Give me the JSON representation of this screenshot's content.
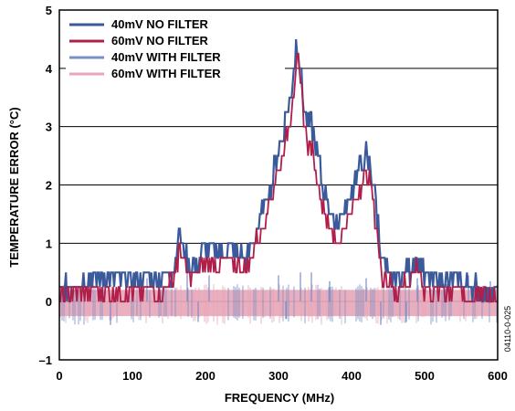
{
  "chart_data": {
    "type": "line",
    "xlabel": "FREQUENCY (MHz)",
    "ylabel": "TEMPERATURE ERROR (°C)",
    "xlim": [
      0,
      600
    ],
    "ylim": [
      -1,
      5
    ],
    "xticks": [
      "0",
      "100",
      "200",
      "300",
      "400",
      "500",
      "600"
    ],
    "yticks": [
      "–1",
      "0",
      "1",
      "2",
      "3",
      "4",
      "5"
    ],
    "grid": "horizontal",
    "legend_position": "top-left",
    "figure_id": "04110-0-025",
    "series": [
      {
        "name": "40mV NO FILTER",
        "color": "#3a5a9c",
        "x": [
          0,
          20,
          40,
          60,
          80,
          100,
          120,
          140,
          155,
          165,
          175,
          185,
          195,
          205,
          215,
          225,
          235,
          245,
          255,
          265,
          275,
          285,
          295,
          305,
          315,
          320,
          325,
          330,
          335,
          340,
          345,
          350,
          355,
          360,
          365,
          370,
          375,
          385,
          395,
          405,
          415,
          420,
          425,
          430,
          435,
          440,
          450,
          460,
          470,
          480,
          490,
          495,
          500,
          510,
          520,
          540,
          560,
          580,
          600
        ],
        "y": [
          0.2,
          0.3,
          0.4,
          0.4,
          0.4,
          0.4,
          0.4,
          0.4,
          0.5,
          1.2,
          0.7,
          0.6,
          0.8,
          0.9,
          0.9,
          0.8,
          0.9,
          0.8,
          0.7,
          1.0,
          1.4,
          1.8,
          2.3,
          2.8,
          3.4,
          3.8,
          4.5,
          4.0,
          3.4,
          3.0,
          3.0,
          2.7,
          2.4,
          2.0,
          1.8,
          1.6,
          1.4,
          1.4,
          1.7,
          2.1,
          2.4,
          2.5,
          2.3,
          2.0,
          1.5,
          0.8,
          0.5,
          0.4,
          0.5,
          0.5,
          0.8,
          0.6,
          0.4,
          0.4,
          0.3,
          0.3,
          0.3,
          0.2,
          0.2
        ]
      },
      {
        "name": "60mV NO FILTER",
        "color": "#b01e4a",
        "x": [
          0,
          20,
          40,
          60,
          80,
          100,
          120,
          140,
          155,
          165,
          175,
          185,
          195,
          205,
          215,
          225,
          235,
          245,
          255,
          265,
          275,
          285,
          295,
          305,
          315,
          320,
          325,
          330,
          335,
          340,
          345,
          350,
          355,
          360,
          365,
          370,
          375,
          385,
          395,
          405,
          415,
          420,
          425,
          430,
          435,
          440,
          450,
          460,
          470,
          480,
          490,
          495,
          500,
          510,
          520,
          540,
          560,
          580,
          600
        ],
        "y": [
          0.1,
          0.2,
          0.2,
          0.2,
          0.2,
          0.2,
          0.2,
          0.2,
          0.3,
          0.9,
          0.5,
          0.4,
          0.6,
          0.7,
          0.6,
          0.6,
          0.7,
          0.6,
          0.5,
          0.8,
          1.2,
          1.6,
          2.0,
          2.5,
          3.0,
          3.6,
          4.2,
          3.7,
          3.1,
          2.7,
          2.6,
          2.3,
          2.0,
          1.7,
          1.5,
          1.3,
          1.1,
          1.1,
          1.4,
          1.8,
          2.1,
          2.2,
          2.0,
          1.7,
          1.2,
          0.6,
          0.3,
          0.2,
          0.3,
          0.3,
          0.6,
          0.4,
          0.2,
          0.2,
          0.2,
          0.2,
          0.1,
          0.1,
          0.1
        ]
      },
      {
        "name": "40mV WITH FILTER",
        "color": "#7a8fc4",
        "x": [
          0,
          50,
          100,
          150,
          200,
          250,
          300,
          350,
          400,
          450,
          500,
          550,
          600
        ],
        "y": [
          0.0,
          0.0,
          0.0,
          0.0,
          0.0,
          0.0,
          0.0,
          0.0,
          0.0,
          0.0,
          0.0,
          0.0,
          0.0
        ]
      },
      {
        "name": "60mV WITH FILTER",
        "color": "#e8a6b8",
        "x": [
          0,
          50,
          100,
          150,
          200,
          250,
          300,
          350,
          400,
          450,
          500,
          550,
          600
        ],
        "y": [
          0.0,
          0.0,
          0.0,
          0.0,
          0.0,
          0.0,
          0.0,
          0.0,
          0.0,
          0.0,
          0.0,
          0.0,
          0.0
        ]
      }
    ]
  }
}
